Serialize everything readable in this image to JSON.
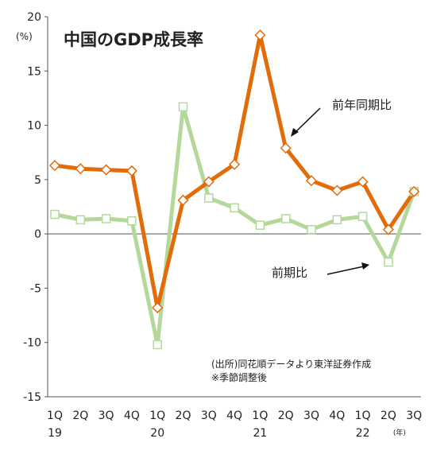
{
  "chart_data": {
    "type": "line",
    "title": "中国のGDP成長率",
    "yunit": "(%)",
    "ylim": [
      -15,
      20
    ],
    "yticks": [
      20,
      15,
      10,
      5,
      0,
      -5,
      -10,
      -15
    ],
    "grid": false,
    "categories": [
      "1Q",
      "2Q",
      "3Q",
      "4Q",
      "1Q",
      "2Q",
      "3Q",
      "4Q",
      "1Q",
      "2Q",
      "3Q",
      "4Q",
      "1Q",
      "2Q",
      "3Q"
    ],
    "years": [
      {
        "label": "19",
        "index": 0
      },
      {
        "label": "20",
        "index": 4
      },
      {
        "label": "21",
        "index": 8
      },
      {
        "label": "22",
        "index": 12
      }
    ],
    "year_unit": "(年)",
    "series": [
      {
        "name": "前年同期比",
        "color": "#e36c0a",
        "values": [
          6.3,
          6.0,
          5.9,
          5.8,
          -6.8,
          3.1,
          4.8,
          6.4,
          18.3,
          7.9,
          4.9,
          4.0,
          4.8,
          0.4,
          3.9
        ]
      },
      {
        "name": "前期比",
        "color": "#b4d79a",
        "values": [
          1.8,
          1.3,
          1.4,
          1.2,
          -10.2,
          11.7,
          3.3,
          2.4,
          0.8,
          1.4,
          0.4,
          1.3,
          1.6,
          -2.6,
          3.9
        ]
      }
    ],
    "notes": [
      "(出所)同花順データより東洋証券作成",
      "※季節調整後"
    ]
  }
}
